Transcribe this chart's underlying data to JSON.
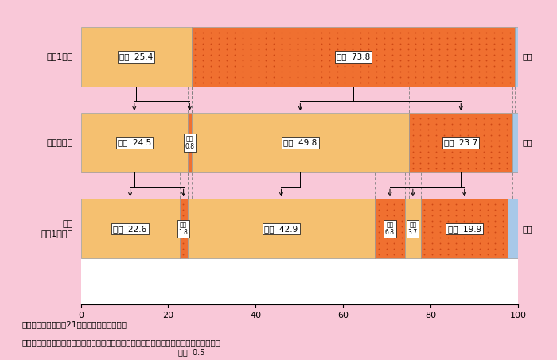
{
  "bg_color": "#f9c8d8",
  "chart_bg": "#ffffff",
  "gap_bg": "#f9c8d8",
  "color_mujob": "#f5c070",
  "color_job_base": "#f07030",
  "color_futai": "#a8c8e8",
  "row_labels": [
    "出産1年前",
    "出産半年後",
    "現在\n（子1歳半）"
  ],
  "rows": [
    [
      {
        "value": 25.4,
        "type": "mujob",
        "text": "無職  25.4"
      },
      {
        "value": 73.8,
        "type": "job",
        "text": "有職  73.8"
      },
      {
        "value": 0.8,
        "type": "futai",
        "text": ""
      }
    ],
    [
      {
        "value": 24.5,
        "type": "mujob",
        "text": "無職  24.5"
      },
      {
        "value": 0.8,
        "type": "job",
        "text": "有職\n0.8",
        "small": true
      },
      {
        "value": 49.8,
        "type": "mujob",
        "text": "無職  49.8"
      },
      {
        "value": 23.7,
        "type": "job",
        "text": "有職  23.7"
      },
      {
        "value": 1.2,
        "type": "futai",
        "text": ""
      }
    ],
    [
      {
        "value": 22.6,
        "type": "mujob",
        "text": "無職  22.6"
      },
      {
        "value": 1.8,
        "type": "job",
        "text": "有職\n1.8",
        "small": true
      },
      {
        "value": 42.9,
        "type": "mujob",
        "text": "無職  42.9"
      },
      {
        "value": 6.8,
        "type": "job",
        "text": "有職\n6.8",
        "small": true
      },
      {
        "value": 3.7,
        "type": "mujob",
        "text": "無職\n3.7",
        "small": true
      },
      {
        "value": 19.9,
        "type": "job",
        "text": "有職  19.9"
      },
      {
        "value": 3.3,
        "type": "futai",
        "text": ""
      }
    ]
  ],
  "footer1": "資料：厚生労働省「21世紀出生児縦断調査」",
  "footer2": "　注：第１回調査及び第２回調査の両方の時点で子どもが母と同居している場合のみ集計"
}
